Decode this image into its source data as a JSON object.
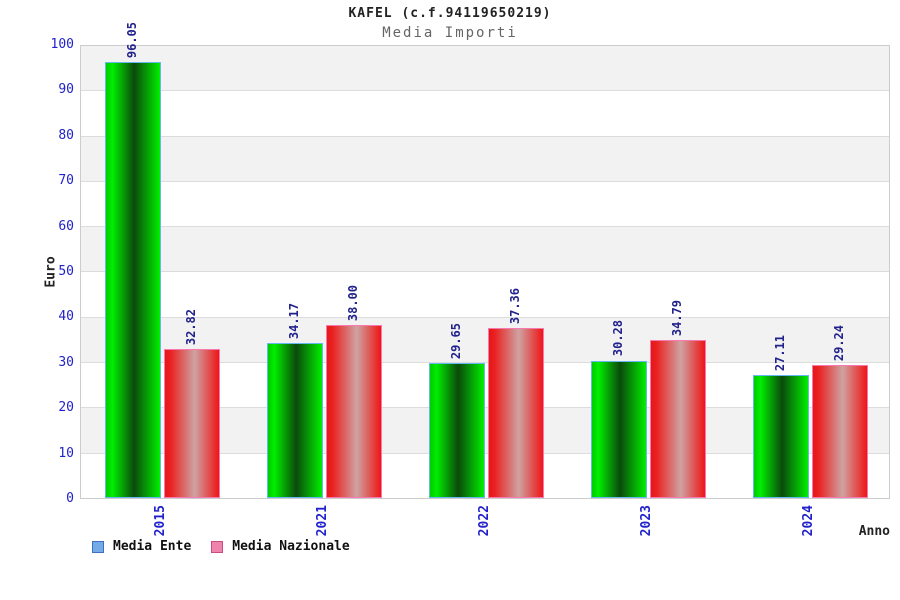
{
  "header": {
    "title": "KAFEL (c.f.94119650219)",
    "subtitle": "Media Importi"
  },
  "axes": {
    "y_title": "Euro",
    "x_title": "Anno"
  },
  "legend": {
    "position": "bottom-left",
    "items": [
      {
        "label": "Media Ente",
        "fill": "#74aae6",
        "border": "#4070c0"
      },
      {
        "label": "Media Nazionale",
        "fill": "#ee84ac",
        "border": "#cc4c84"
      }
    ]
  },
  "colors": {
    "band_gray": "#f2f2f2",
    "band_white": "#ffffff",
    "gridline": "#dcdcdc",
    "plot_border": "#cccccc",
    "tick_label": "#2222cc",
    "value_label": "#22228c",
    "title": "#222222",
    "subtitle": "#666666"
  },
  "chart_data": {
    "type": "bar",
    "title": "KAFEL (c.f.94119650219)",
    "subtitle": "Media Importi",
    "xlabel": "Anno",
    "ylabel": "Euro",
    "ylim": [
      0,
      100
    ],
    "y_ticks": [
      0,
      10,
      20,
      30,
      40,
      50,
      60,
      70,
      80,
      90,
      100
    ],
    "grid": "horizontal gridlines every 10 with alternating gray/white bands",
    "legend_position": "bottom-left",
    "categories": [
      "2015",
      "2021",
      "2022",
      "2023",
      "2024"
    ],
    "series": [
      {
        "name": "Media Ente",
        "values": [
          96.05,
          34.17,
          29.65,
          30.28,
          27.11
        ],
        "labels": [
          "96.05",
          "34.17",
          "29.65",
          "30.28",
          "27.11"
        ],
        "gradient_colors": [
          "#00cc00",
          "#00ee00",
          "#0b4a0b",
          "#00ee00"
        ],
        "gradient_stops": [
          "0%",
          "12%",
          "52%",
          "100%"
        ],
        "border": "#66b8f0"
      },
      {
        "name": "Media Nazionale",
        "values": [
          32.82,
          38.0,
          37.36,
          34.79,
          29.24
        ],
        "labels": [
          "32.82",
          "38.00",
          "37.36",
          "34.79",
          "29.24"
        ],
        "gradient_colors": [
          "#e51717",
          "#ea2020",
          "#cfa2a2",
          "#ee1515"
        ],
        "gradient_stops": [
          "0%",
          "10%",
          "55%",
          "100%"
        ],
        "border": "#f878b0"
      }
    ]
  }
}
